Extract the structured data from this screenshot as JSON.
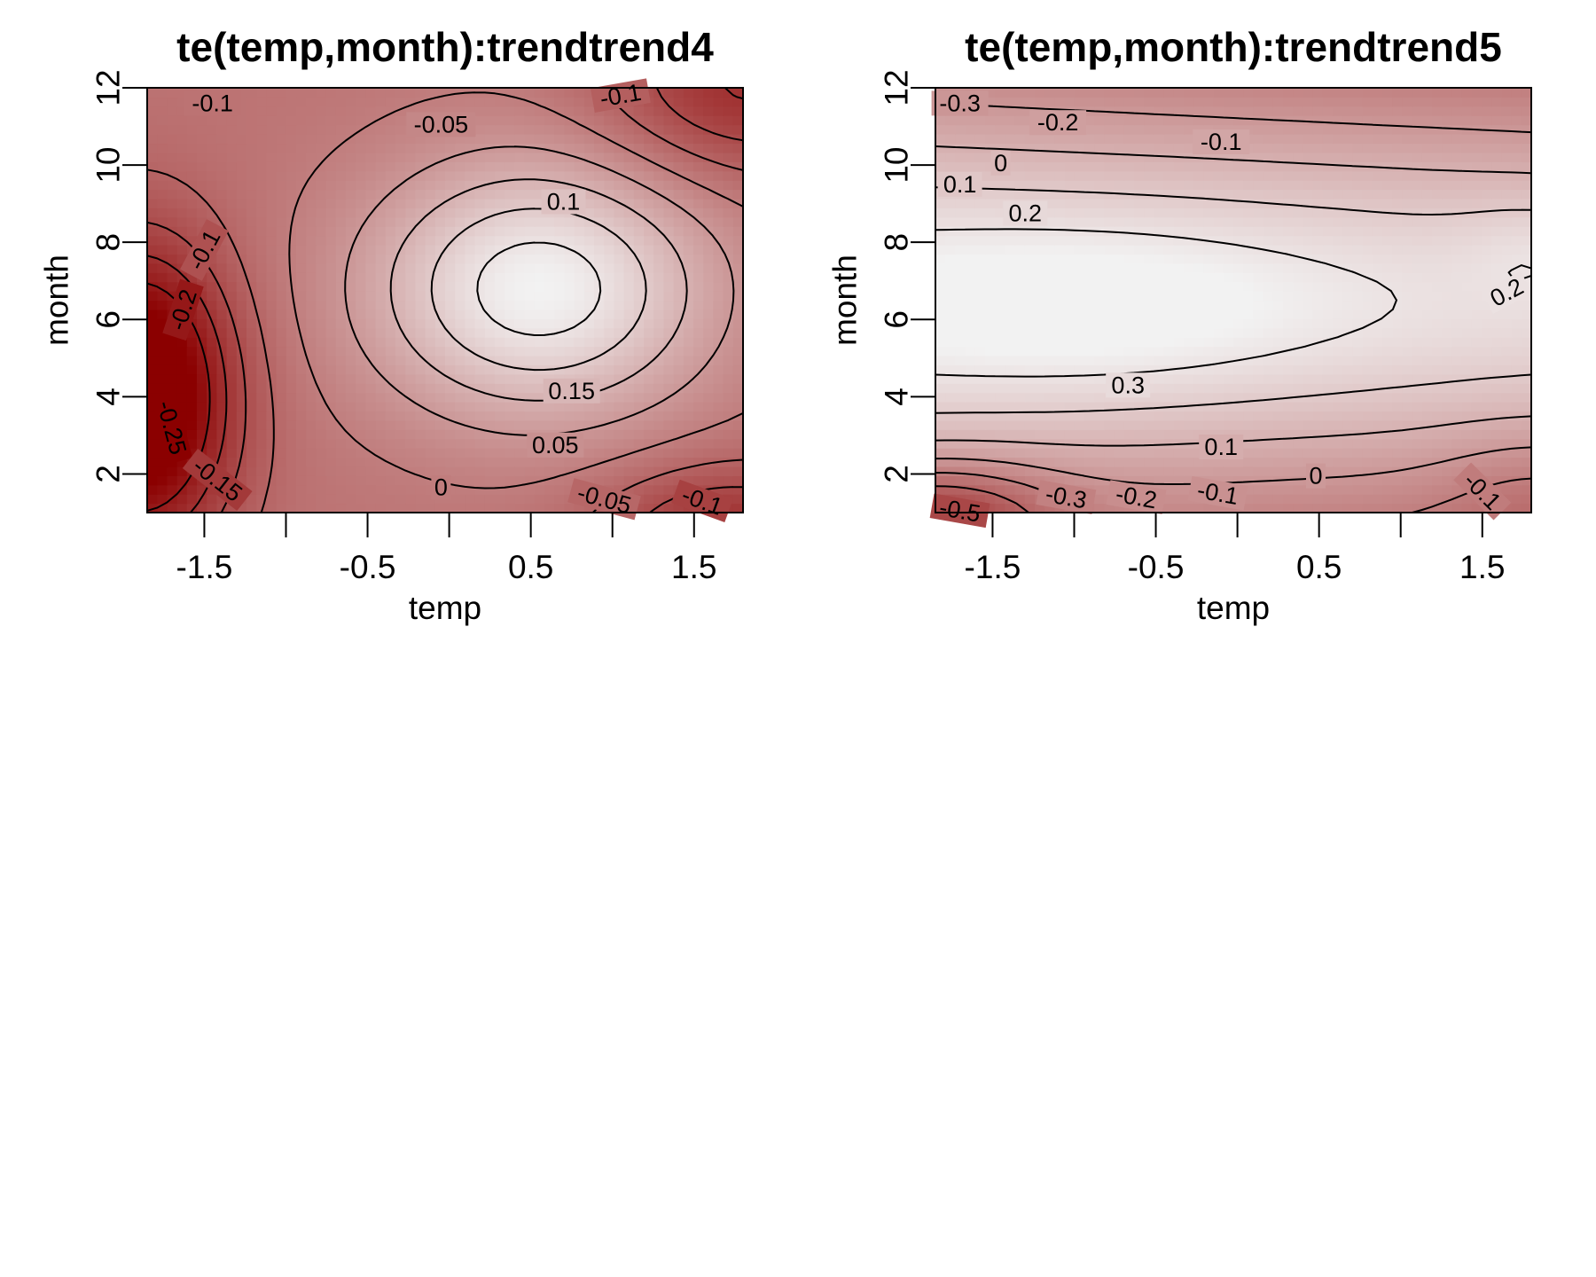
{
  "chart_data": [
    {
      "type": "heatmap",
      "subtype": "contour",
      "title": "te(temp,month):trendtrend4",
      "xlabel": "temp",
      "ylabel": "month",
      "xlim": [
        -1.85,
        1.8
      ],
      "ylim": [
        1,
        12
      ],
      "xticks": [
        -1.5,
        -1,
        -0.5,
        0,
        0.5,
        1,
        1.5
      ],
      "xtick_labels": [
        "-1.5",
        "",
        "-0.5",
        "",
        "0.5",
        "",
        "1.5"
      ],
      "yticks": [
        2,
        4,
        6,
        8,
        10,
        12
      ],
      "ytick_labels": [
        "2",
        "4",
        "6",
        "8",
        "10",
        "12"
      ],
      "value_range": [
        -0.3,
        0.18
      ],
      "colors": {
        "low": "#8b0000",
        "high": "#f2f2f2"
      },
      "grid": false,
      "components": [
        {
          "type": "bump",
          "x0": 0.55,
          "y0": 6.8,
          "sx": 0.75,
          "sy": 2.4,
          "amp": 0.25
        },
        {
          "type": "bump",
          "x0": -1.9,
          "y0": 4.0,
          "sx": 0.4,
          "sy": 2.7,
          "amp": -0.33
        },
        {
          "type": "bump",
          "x0": 1.8,
          "y0": 12.0,
          "sx": 0.6,
          "sy": 1.6,
          "amp": -0.14
        },
        {
          "type": "bump",
          "x0": 1.7,
          "y0": 0.5,
          "sx": 0.55,
          "sy": 1.2,
          "amp": -0.14
        },
        {
          "type": "const",
          "value": -0.07
        }
      ],
      "contour_levels": [
        -0.25,
        -0.2,
        -0.15,
        -0.1,
        -0.05,
        0,
        0.05,
        0.1,
        0.15
      ],
      "contour_labels": [
        {
          "text": "-0.1",
          "x": -1.45,
          "y": 11.6,
          "angle": 0
        },
        {
          "text": "-0.05",
          "x": -0.05,
          "y": 11.05,
          "angle": 0
        },
        {
          "text": "-0.1",
          "x": 1.05,
          "y": 11.8,
          "angle": 10
        },
        {
          "text": "0.1",
          "x": 0.7,
          "y": 9.05,
          "angle": 0
        },
        {
          "text": "-0.1",
          "x": -1.5,
          "y": 7.8,
          "angle": 62
        },
        {
          "text": "-0.2",
          "x": -1.63,
          "y": 6.25,
          "angle": 72
        },
        {
          "text": "0.15",
          "x": 0.75,
          "y": 4.15,
          "angle": 0
        },
        {
          "text": "-0.25",
          "x": -1.7,
          "y": 3.2,
          "angle": -75
        },
        {
          "text": "-0.15",
          "x": -1.42,
          "y": 1.85,
          "angle": -38
        },
        {
          "text": "0.05",
          "x": 0.65,
          "y": 2.75,
          "angle": 0
        },
        {
          "text": "0",
          "x": -0.05,
          "y": 1.65,
          "angle": 0
        },
        {
          "text": "-0.05",
          "x": 0.95,
          "y": 1.35,
          "angle": -15
        },
        {
          "text": "-0.1",
          "x": 1.55,
          "y": 1.3,
          "angle": -20
        }
      ]
    },
    {
      "type": "heatmap",
      "subtype": "contour",
      "title": "te(temp,month):trendtrend5",
      "xlabel": "temp",
      "ylabel": "month",
      "xlim": [
        -1.85,
        1.8
      ],
      "ylim": [
        1,
        12
      ],
      "xticks": [
        -1.5,
        -1,
        -0.5,
        0,
        0.5,
        1,
        1.5
      ],
      "xtick_labels": [
        "-1.5",
        "",
        "-0.5",
        "",
        "0.5",
        "",
        "1.5"
      ],
      "yticks": [
        2,
        4,
        6,
        8,
        10,
        12
      ],
      "ytick_labels": [
        "2",
        "4",
        "6",
        "8",
        "10",
        "12"
      ],
      "value_range": [
        -0.6,
        0.36
      ],
      "colors": {
        "low": "#8b0000",
        "high": "#f2f2f2"
      },
      "grid": false,
      "components": [
        {
          "type": "band",
          "y0": 6.5,
          "sy": 4.0,
          "amp": 0.6,
          "offset": -0.3
        },
        {
          "type": "linear",
          "cx": -0.018
        },
        {
          "type": "bump",
          "x0": -0.9,
          "y0": 6.3,
          "sx": 1.0,
          "sy": 1.5,
          "amp": 0.1
        },
        {
          "type": "bump",
          "x0": -1.85,
          "y0": 1.0,
          "sx": 0.5,
          "sy": 0.9,
          "amp": -0.3
        },
        {
          "type": "bump",
          "x0": 1.8,
          "y0": 7.8,
          "sx": 0.3,
          "sy": 0.9,
          "amp": 0.05
        },
        {
          "type": "bump",
          "x0": 1.8,
          "y0": 1.5,
          "sx": 0.4,
          "sy": 1.2,
          "amp": -0.08
        }
      ],
      "contour_levels": [
        -0.5,
        -0.4,
        -0.3,
        -0.2,
        -0.1,
        0,
        0.1,
        0.2,
        0.3
      ],
      "contour_labels": [
        {
          "text": "-0.3",
          "x": -1.7,
          "y": 11.6,
          "angle": 0
        },
        {
          "text": "-0.2",
          "x": -1.1,
          "y": 11.1,
          "angle": 0
        },
        {
          "text": "-0.1",
          "x": -0.1,
          "y": 10.6,
          "angle": 0
        },
        {
          "text": "0",
          "x": -1.45,
          "y": 10.05,
          "angle": 0
        },
        {
          "text": "0.1",
          "x": -1.7,
          "y": 9.5,
          "angle": 0
        },
        {
          "text": "0.2",
          "x": -1.3,
          "y": 8.75,
          "angle": 0
        },
        {
          "text": "0.2",
          "x": 1.65,
          "y": 6.7,
          "angle": 28
        },
        {
          "text": "0.3",
          "x": -0.67,
          "y": 4.3,
          "angle": 0
        },
        {
          "text": "0.1",
          "x": -0.1,
          "y": 2.7,
          "angle": 0
        },
        {
          "text": "0",
          "x": 0.48,
          "y": 1.95,
          "angle": 0
        },
        {
          "text": "-0.1",
          "x": 1.5,
          "y": 1.55,
          "angle": -45
        },
        {
          "text": "-0.3",
          "x": -1.05,
          "y": 1.4,
          "angle": -10
        },
        {
          "text": "-0.2",
          "x": -0.62,
          "y": 1.4,
          "angle": -10
        },
        {
          "text": "-0.1",
          "x": -0.12,
          "y": 1.5,
          "angle": -10
        },
        {
          "text": "-0.5",
          "x": -1.7,
          "y": 1.05,
          "angle": -10
        }
      ]
    }
  ]
}
